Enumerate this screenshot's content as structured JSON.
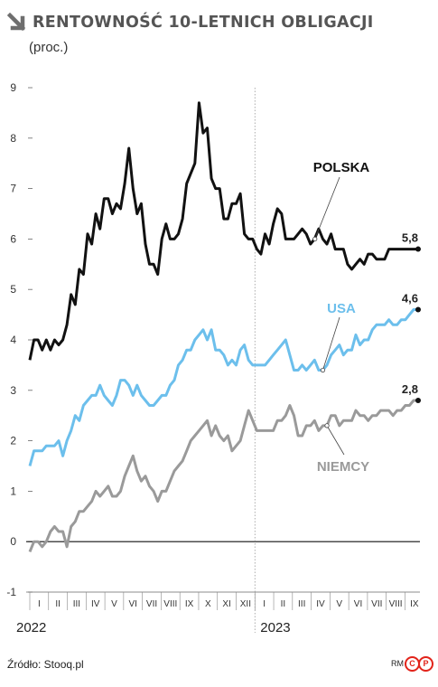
{
  "title": "RENTOWNOŚĆ 10-LETNICH OBLIGACJI",
  "subtitle": "(proc.)",
  "source": "Źródło: Stooq.pl",
  "credit": "RM",
  "logo_letters": [
    "C",
    "P"
  ],
  "colors": {
    "polska": "#111111",
    "usa": "#6cbfec",
    "niemcy": "#9a9a9a",
    "accent": "#e2231a",
    "zero_line": "#111111",
    "grid": "#cccccc"
  },
  "chart_data": {
    "type": "line",
    "ylim": [
      -1,
      9
    ],
    "yticks": [
      -1,
      0,
      1,
      2,
      3,
      4,
      5,
      6,
      7,
      8,
      9
    ],
    "grid": "none",
    "month_labels": [
      "I",
      "II",
      "III",
      "IV",
      "V",
      "VI",
      "VII",
      "VIII",
      "IX",
      "X",
      "XI",
      "XII",
      "I",
      "II",
      "III",
      "IV",
      "V",
      "VI",
      "VII",
      "VIII",
      "IX"
    ],
    "year_labels": [
      "2022",
      "2023"
    ],
    "x_range_months": [
      0,
      20.7
    ],
    "year_divider_month": 12,
    "series": [
      {
        "name": "POLSKA",
        "end_label": "5,8",
        "x": [
          0.0,
          0.22,
          0.44,
          0.66,
          0.88,
          1.1,
          1.32,
          1.54,
          1.76,
          1.98,
          2.2,
          2.42,
          2.64,
          2.86,
          3.08,
          3.3,
          3.52,
          3.74,
          3.96,
          4.18,
          4.4,
          4.62,
          4.84,
          5.06,
          5.28,
          5.5,
          5.72,
          5.94,
          6.16,
          6.38,
          6.6,
          6.82,
          7.04,
          7.26,
          7.48,
          7.7,
          7.92,
          8.14,
          8.36,
          8.58,
          8.8,
          9.02,
          9.24,
          9.46,
          9.68,
          9.9,
          10.12,
          10.34,
          10.56,
          10.78,
          11.0,
          11.22,
          11.44,
          11.66,
          11.88,
          12.1,
          12.32,
          12.54,
          12.76,
          12.98,
          13.2,
          13.42,
          13.64,
          13.86,
          14.08,
          14.3,
          14.52,
          14.74,
          14.96,
          15.18,
          15.4,
          15.62,
          15.84,
          16.06,
          16.28,
          16.5,
          16.72,
          16.94,
          17.16,
          17.38,
          17.6,
          17.82,
          18.04,
          18.26,
          18.48,
          18.7,
          18.92,
          19.14,
          19.36,
          19.58,
          19.8,
          20.02,
          20.24,
          20.46,
          20.7
        ],
        "values": [
          3.6,
          4.0,
          4.0,
          3.8,
          4.0,
          3.8,
          4.0,
          3.9,
          4.0,
          4.3,
          4.9,
          4.7,
          5.4,
          5.3,
          6.1,
          5.9,
          6.5,
          6.2,
          6.8,
          6.8,
          6.5,
          6.7,
          6.6,
          7.1,
          7.8,
          7.0,
          6.5,
          6.7,
          5.9,
          5.5,
          5.5,
          5.3,
          6.0,
          6.3,
          6.0,
          6.0,
          6.1,
          6.4,
          7.1,
          7.3,
          7.5,
          8.7,
          8.1,
          8.2,
          7.2,
          7.0,
          7.0,
          6.4,
          6.4,
          6.7,
          6.7,
          6.9,
          6.1,
          6.0,
          6.0,
          5.8,
          5.7,
          6.1,
          5.9,
          6.3,
          6.6,
          6.5,
          6.0,
          6.0,
          6.0,
          6.1,
          6.2,
          6.1,
          5.9,
          6.0,
          6.2,
          6.0,
          5.9,
          6.1,
          5.8,
          5.8,
          5.8,
          5.5,
          5.4,
          5.5,
          5.6,
          5.5,
          5.7,
          5.7,
          5.6,
          5.6,
          5.6,
          5.8,
          5.8,
          5.8,
          5.8,
          5.8,
          5.8,
          5.8,
          5.8
        ]
      },
      {
        "name": "USA",
        "end_label": "4,6",
        "x": [
          0.0,
          0.22,
          0.44,
          0.66,
          0.88,
          1.1,
          1.32,
          1.54,
          1.76,
          1.98,
          2.2,
          2.42,
          2.64,
          2.86,
          3.08,
          3.3,
          3.52,
          3.74,
          3.96,
          4.18,
          4.4,
          4.62,
          4.84,
          5.06,
          5.28,
          5.5,
          5.72,
          5.94,
          6.16,
          6.38,
          6.6,
          6.82,
          7.04,
          7.26,
          7.48,
          7.7,
          7.92,
          8.14,
          8.36,
          8.58,
          8.8,
          9.02,
          9.24,
          9.46,
          9.68,
          9.9,
          10.12,
          10.34,
          10.56,
          10.78,
          11.0,
          11.22,
          11.44,
          11.66,
          11.88,
          12.1,
          12.32,
          12.54,
          12.76,
          12.98,
          13.2,
          13.42,
          13.64,
          13.86,
          14.08,
          14.3,
          14.52,
          14.74,
          14.96,
          15.18,
          15.4,
          15.62,
          15.84,
          16.06,
          16.28,
          16.5,
          16.72,
          16.94,
          17.16,
          17.38,
          17.6,
          17.82,
          18.04,
          18.26,
          18.48,
          18.7,
          18.92,
          19.14,
          19.36,
          19.58,
          19.8,
          20.02,
          20.24,
          20.46,
          20.7
        ],
        "values": [
          1.5,
          1.8,
          1.8,
          1.8,
          1.9,
          1.9,
          1.9,
          2.0,
          1.7,
          2.0,
          2.2,
          2.5,
          2.4,
          2.7,
          2.8,
          2.9,
          2.9,
          3.1,
          2.9,
          2.8,
          2.7,
          2.9,
          3.2,
          3.2,
          3.1,
          2.9,
          3.1,
          2.9,
          2.8,
          2.7,
          2.7,
          2.8,
          2.9,
          2.9,
          3.1,
          3.2,
          3.5,
          3.6,
          3.8,
          3.8,
          4.0,
          4.1,
          4.2,
          4.0,
          4.2,
          3.8,
          3.8,
          3.7,
          3.5,
          3.6,
          3.5,
          3.8,
          3.9,
          3.6,
          3.5,
          3.5,
          3.5,
          3.5,
          3.6,
          3.7,
          3.8,
          3.9,
          4.0,
          3.7,
          3.4,
          3.4,
          3.5,
          3.4,
          3.5,
          3.6,
          3.4,
          3.4,
          3.5,
          3.7,
          3.8,
          3.9,
          3.7,
          3.8,
          3.8,
          4.1,
          3.9,
          4.0,
          4.0,
          4.2,
          4.3,
          4.3,
          4.3,
          4.4,
          4.3,
          4.3,
          4.4,
          4.4,
          4.5,
          4.6,
          4.6
        ]
      },
      {
        "name": "NIEMCY",
        "end_label": "2,8",
        "x": [
          0.0,
          0.22,
          0.44,
          0.66,
          0.88,
          1.1,
          1.32,
          1.54,
          1.76,
          1.98,
          2.2,
          2.42,
          2.64,
          2.86,
          3.08,
          3.3,
          3.52,
          3.74,
          3.96,
          4.18,
          4.4,
          4.62,
          4.84,
          5.06,
          5.28,
          5.5,
          5.72,
          5.94,
          6.16,
          6.38,
          6.6,
          6.82,
          7.04,
          7.26,
          7.48,
          7.7,
          7.92,
          8.14,
          8.36,
          8.58,
          8.8,
          9.02,
          9.24,
          9.46,
          9.68,
          9.9,
          10.12,
          10.34,
          10.56,
          10.78,
          11.0,
          11.22,
          11.44,
          11.66,
          11.88,
          12.1,
          12.32,
          12.54,
          12.76,
          12.98,
          13.2,
          13.42,
          13.64,
          13.86,
          14.08,
          14.3,
          14.52,
          14.74,
          14.96,
          15.18,
          15.4,
          15.62,
          15.84,
          16.06,
          16.28,
          16.5,
          16.72,
          16.94,
          17.16,
          17.38,
          17.6,
          17.82,
          18.04,
          18.26,
          18.48,
          18.7,
          18.92,
          19.14,
          19.36,
          19.58,
          19.8,
          20.02,
          20.24,
          20.46,
          20.7
        ],
        "values": [
          -0.2,
          0.0,
          0.0,
          -0.1,
          0.0,
          0.2,
          0.3,
          0.2,
          0.2,
          -0.1,
          0.3,
          0.4,
          0.6,
          0.6,
          0.7,
          0.8,
          1.0,
          0.9,
          1.0,
          1.1,
          0.9,
          0.9,
          1.0,
          1.3,
          1.5,
          1.7,
          1.4,
          1.2,
          1.3,
          1.1,
          1.0,
          0.8,
          1.0,
          1.0,
          1.2,
          1.4,
          1.5,
          1.6,
          1.8,
          2.0,
          2.1,
          2.2,
          2.3,
          2.4,
          2.1,
          2.3,
          2.1,
          2.0,
          2.1,
          1.8,
          1.9,
          2.0,
          2.3,
          2.6,
          2.4,
          2.2,
          2.2,
          2.2,
          2.2,
          2.2,
          2.4,
          2.4,
          2.5,
          2.7,
          2.5,
          2.1,
          2.1,
          2.3,
          2.3,
          2.4,
          2.2,
          2.3,
          2.3,
          2.5,
          2.5,
          2.3,
          2.4,
          2.4,
          2.4,
          2.6,
          2.5,
          2.5,
          2.4,
          2.5,
          2.5,
          2.6,
          2.6,
          2.6,
          2.5,
          2.6,
          2.6,
          2.7,
          2.7,
          2.8,
          2.8
        ]
      }
    ]
  }
}
